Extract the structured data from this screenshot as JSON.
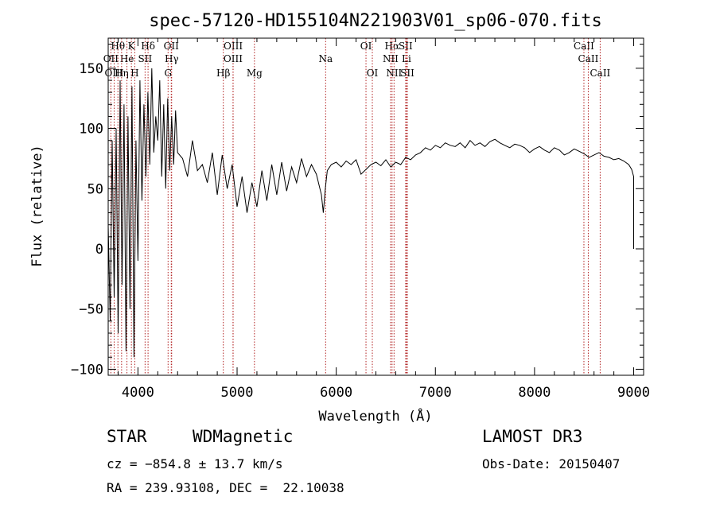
{
  "chart_data": {
    "type": "line",
    "title": "spec-57120-HD155104N221903V01_sp06-070.fits",
    "xlabel": "Wavelength (Å)",
    "ylabel": "Flux (relative)",
    "xlim": [
      3700,
      9100
    ],
    "ylim": [
      -105,
      175
    ],
    "x_ticks": [
      4000,
      5000,
      6000,
      7000,
      8000,
      9000
    ],
    "y_ticks": [
      -100,
      -50,
      0,
      50,
      100,
      150
    ],
    "x_tick_labels": [
      "4000",
      "5000",
      "6000",
      "7000",
      "8000",
      "9000"
    ],
    "y_tick_labels": [
      "−100",
      "−50",
      "0",
      "50",
      "100",
      "150"
    ],
    "series": [
      {
        "name": "flux",
        "x": [
          3700,
          3720,
          3740,
          3760,
          3780,
          3800,
          3820,
          3840,
          3860,
          3880,
          3900,
          3920,
          3940,
          3960,
          3980,
          4000,
          4020,
          4040,
          4060,
          4080,
          4100,
          4120,
          4140,
          4160,
          4180,
          4200,
          4220,
          4240,
          4260,
          4280,
          4300,
          4320,
          4340,
          4360,
          4380,
          4400,
          4450,
          4500,
          4550,
          4600,
          4650,
          4700,
          4750,
          4800,
          4850,
          4900,
          4950,
          5000,
          5050,
          5100,
          5150,
          5200,
          5250,
          5300,
          5350,
          5400,
          5450,
          5500,
          5550,
          5600,
          5650,
          5700,
          5750,
          5800,
          5850,
          5870,
          5890,
          5910,
          5950,
          6000,
          6050,
          6100,
          6150,
          6200,
          6250,
          6300,
          6350,
          6400,
          6450,
          6500,
          6550,
          6600,
          6650,
          6700,
          6750,
          6800,
          6850,
          6900,
          6950,
          7000,
          7050,
          7100,
          7150,
          7200,
          7250,
          7300,
          7350,
          7400,
          7450,
          7500,
          7550,
          7600,
          7650,
          7700,
          7750,
          7800,
          7850,
          7900,
          7950,
          8000,
          8050,
          8100,
          8150,
          8200,
          8250,
          8300,
          8350,
          8400,
          8450,
          8500,
          8550,
          8600,
          8650,
          8700,
          8750,
          8800,
          8850,
          8900,
          8950,
          8980,
          9000,
          9000
        ],
        "y": [
          20,
          -60,
          90,
          -40,
          100,
          -70,
          140,
          -30,
          120,
          -85,
          110,
          -50,
          135,
          -90,
          90,
          -10,
          140,
          40,
          120,
          60,
          130,
          70,
          150,
          80,
          110,
          90,
          140,
          60,
          120,
          50,
          125,
          65,
          110,
          70,
          115,
          80,
          75,
          60,
          90,
          65,
          70,
          55,
          80,
          45,
          78,
          50,
          70,
          35,
          60,
          30,
          55,
          35,
          65,
          40,
          70,
          45,
          72,
          48,
          68,
          55,
          75,
          60,
          70,
          62,
          45,
          30,
          50,
          65,
          70,
          72,
          68,
          73,
          70,
          74,
          62,
          66,
          70,
          72,
          69,
          74,
          68,
          72,
          70,
          76,
          74,
          78,
          80,
          84,
          82,
          86,
          84,
          88,
          86,
          85,
          88,
          84,
          90,
          86,
          88,
          85,
          89,
          91,
          88,
          86,
          84,
          87,
          86,
          84,
          80,
          83,
          85,
          82,
          80,
          84,
          82,
          78,
          80,
          83,
          81,
          79,
          76,
          78,
          80,
          77,
          76,
          74,
          75,
          73,
          70,
          66,
          60,
          0
        ]
      }
    ],
    "spectral_lines": [
      {
        "label": "Hθ",
        "x": 3798,
        "row": 1
      },
      {
        "label": "K",
        "x": 3934,
        "row": 1
      },
      {
        "label": "Hδ",
        "x": 4102,
        "row": 1
      },
      {
        "label": "OII",
        "x": 4336,
        "row": 1
      },
      {
        "label": "OIII",
        "x": 4960,
        "row": 1
      },
      {
        "label": "OI",
        "x": 6300,
        "row": 1
      },
      {
        "label": "Hα",
        "x": 6563,
        "row": 1
      },
      {
        "label": "SII",
        "x": 6700,
        "row": 1
      },
      {
        "label": "CaII",
        "x": 8498,
        "row": 1
      },
      {
        "label": "OII",
        "x": 3727,
        "row": 2
      },
      {
        "label": "He",
        "x": 3889,
        "row": 2
      },
      {
        "label": "SII",
        "x": 4072,
        "row": 2
      },
      {
        "label": "Hγ",
        "x": 4340,
        "row": 2
      },
      {
        "label": "OIII",
        "x": 4959,
        "row": 2
      },
      {
        "label": "Na",
        "x": 5893,
        "row": 2
      },
      {
        "label": "NII",
        "x": 6548,
        "row": 2
      },
      {
        "label": "Li",
        "x": 6708,
        "row": 2
      },
      {
        "label": "CaII",
        "x": 8542,
        "row": 2
      },
      {
        "label": "OIII",
        "x": 3760,
        "row": 3
      },
      {
        "label": "Hη",
        "x": 3835,
        "row": 3
      },
      {
        "label": "H",
        "x": 3968,
        "row": 3
      },
      {
        "label": "G",
        "x": 4304,
        "row": 3
      },
      {
        "label": "Hβ",
        "x": 4861,
        "row": 3
      },
      {
        "label": "Mg",
        "x": 5175,
        "row": 3
      },
      {
        "label": "OI",
        "x": 6364,
        "row": 3
      },
      {
        "label": "NII",
        "x": 6583,
        "row": 3
      },
      {
        "label": "SII",
        "x": 6717,
        "row": 3
      },
      {
        "label": "CaII",
        "x": 8662,
        "row": 3
      }
    ]
  },
  "info": {
    "object_class": "STAR",
    "subclass": "WDMagnetic",
    "survey": "LAMOST DR3",
    "redshift": "cz = −854.8 ± 13.7 km/s",
    "obs_date": "Obs-Date: 20150407",
    "coords": "RA = 239.93108, DEC =  22.10038"
  }
}
